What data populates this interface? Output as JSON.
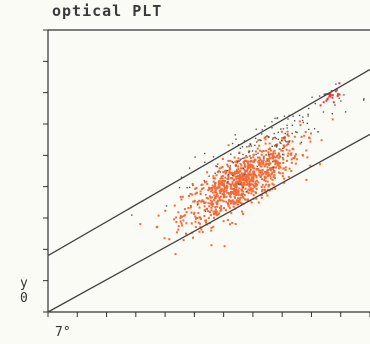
{
  "chart_data": {
    "type": "scatter",
    "title": "optical PLT",
    "y_axis_labels": [
      "y",
      "0"
    ],
    "x_axis_label": "7°",
    "xlabel": "",
    "ylabel": "",
    "xlim": [
      0,
      100
    ],
    "ylim": [
      0,
      100
    ],
    "grid": false,
    "series": [
      {
        "color": "#f26a38",
        "cluster_center": [
          60,
          46
        ],
        "spread": [
          9,
          8
        ],
        "count": 900
      },
      {
        "color": "#e33b43",
        "cluster_center": [
          88,
          77
        ],
        "spread": [
          1.5,
          2
        ],
        "count": 25
      },
      {
        "color": "#555555",
        "cluster_center": [
          68,
          60
        ],
        "spread": [
          14,
          7
        ],
        "count": 140
      }
    ],
    "reference_lines": [
      {
        "x": [
          0,
          100
        ],
        "y": [
          20,
          86
        ]
      },
      {
        "x": [
          0,
          100
        ],
        "y": [
          0,
          63
        ]
      }
    ],
    "x_tick_count": 12,
    "y_tick_count": 10
  }
}
